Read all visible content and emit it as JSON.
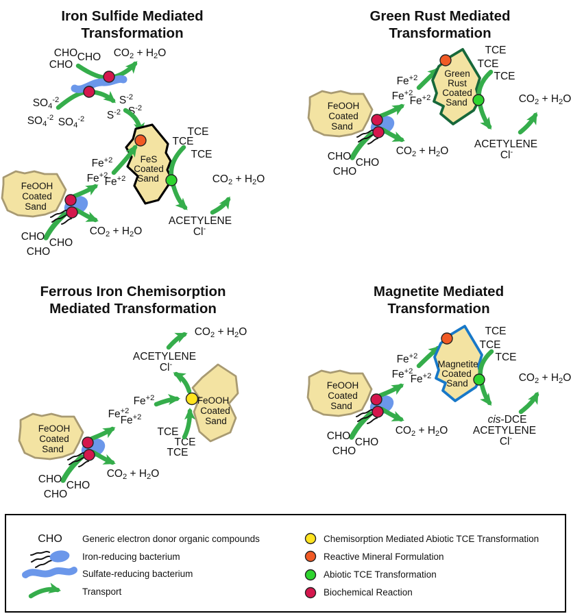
{
  "panels": {
    "iron_sulfide": {
      "title1": "Iron Sulfide Mediated",
      "title2": "Transformation",
      "mineral": [
        "FeS",
        "Coated",
        "Sand"
      ]
    },
    "green_rust": {
      "title1": "Green Rust Mediated",
      "title2": "Transformation",
      "mineral": [
        "Green",
        "Rust",
        "Coated",
        "Sand"
      ]
    },
    "ferrous": {
      "title1": "Ferrous Iron Chemisorption",
      "title2": "Mediated Transformation",
      "mineral": [
        "FeOOH",
        "Coated",
        "Sand"
      ]
    },
    "magnetite": {
      "title1": "Magnetite Mediated",
      "title2": "Transformation",
      "mineral": [
        "Magnetite",
        "Coated",
        "Sand"
      ]
    }
  },
  "source_label": [
    "FeOOH",
    "Coated",
    "Sand"
  ],
  "chem": {
    "cho": "CHO",
    "co2_h2o": [
      [
        "CO",
        ""
      ],
      [
        "2",
        "sub"
      ],
      [
        " + H",
        ""
      ],
      [
        "2",
        "sub"
      ],
      [
        "O",
        ""
      ]
    ],
    "so4": [
      [
        "SO",
        ""
      ],
      [
        "4",
        "sub"
      ],
      [
        "-2",
        "sup"
      ]
    ],
    "s2": [
      [
        "S",
        ""
      ],
      [
        "-2",
        "sup"
      ]
    ],
    "fe2": [
      [
        "Fe",
        ""
      ],
      [
        "+2",
        "sup"
      ]
    ],
    "tce": "TCE",
    "acetylene": "ACETYLENE",
    "cl": [
      [
        "Cl",
        ""
      ],
      [
        "-",
        "sup"
      ]
    ],
    "cis_dce": [
      [
        "cis",
        "i"
      ],
      [
        "-DCE",
        ""
      ]
    ]
  },
  "legend": {
    "left": [
      {
        "symbol": "cho-text",
        "label": "Generic electron donor organic compounds"
      },
      {
        "symbol": "iron-reducing-bacterium",
        "label": "Iron-reducing bacterium"
      },
      {
        "symbol": "sulfate-reducing-bacterium",
        "label": "Sulfate-reducing bacterium"
      },
      {
        "symbol": "transport-arrow",
        "label": "Transport"
      }
    ],
    "right": [
      {
        "symbol": "yellow-dot",
        "label": "Chemisorption Mediated Abiotic TCE Transformation"
      },
      {
        "symbol": "orange-dot",
        "label": "Reactive Mineral Formulation"
      },
      {
        "symbol": "green-dot",
        "label": "Abiotic TCE Transformation"
      },
      {
        "symbol": "crimson-dot",
        "label": "Biochemical Reaction"
      }
    ]
  },
  "colors": {
    "arrow": "#35ad4b",
    "sand": "#f3e3a2",
    "feooh_border": "#a89a72",
    "fes_border": "#000000",
    "green_rust_border": "#17683a",
    "magnetite_border": "#1878c8",
    "bacterium": "#6b97ea",
    "chemisorption": "#ffe320",
    "mineral": "#f15a25",
    "abiotic": "#2fd42f",
    "biochem": "#d4174d",
    "dot_outline": "#222222",
    "legend_border": "#000000",
    "background": "#ffffff"
  }
}
